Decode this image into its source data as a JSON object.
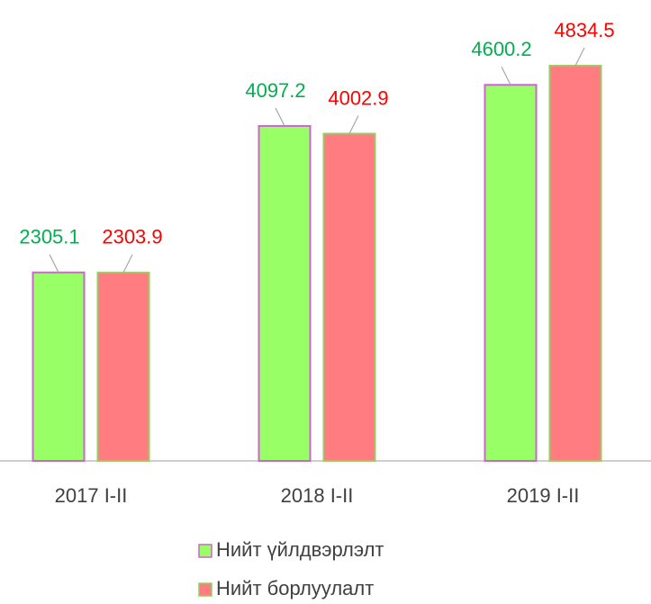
{
  "chart_data": {
    "type": "bar",
    "categories": [
      "2017 I-II",
      "2018 I-II",
      "2019 I-II"
    ],
    "series": [
      {
        "name": "Нийт үйлдвэрлэлт",
        "color": "#99ff66",
        "border": "#cc66cc",
        "label_color": "#00b050",
        "values": [
          2305.1,
          4097.2,
          4600.2
        ]
      },
      {
        "name": "Нийт борлуулалт",
        "color": "#ff7c80",
        "border": "#99cc66",
        "label_color": "#ff0000",
        "values": [
          2303.9,
          4002.9,
          4834.5
        ]
      }
    ],
    "legend": "bottom"
  }
}
